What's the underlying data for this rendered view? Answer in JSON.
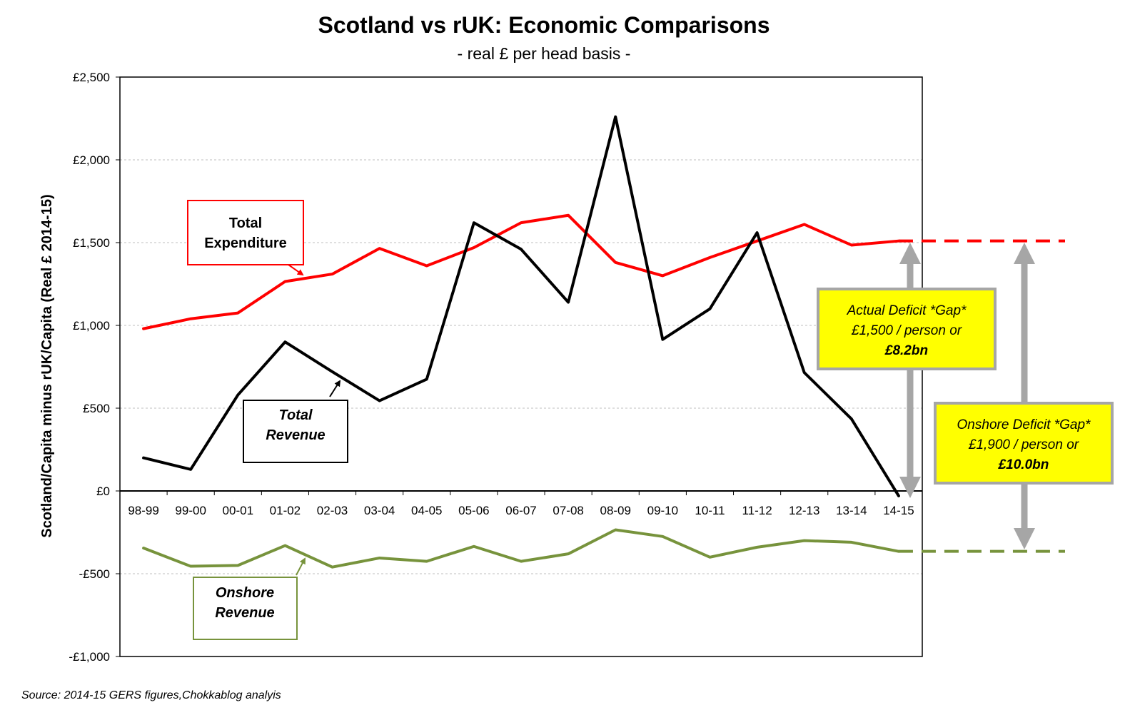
{
  "chart_data": {
    "type": "line",
    "title": "Scotland vs rUK: Economic Comparisons",
    "subtitle": "- real £ per head basis -",
    "ylabel": "Scotland/Capita minus rUK/Capita (Real £ 2014-15)",
    "xlabel": "",
    "ylim": [
      -1000,
      2500
    ],
    "yticks": [
      -1000,
      -500,
      0,
      500,
      1000,
      1500,
      2000,
      2500
    ],
    "ytick_labels": [
      "-£1,000",
      "-£500",
      "£0",
      "£500",
      "£1,000",
      "£1,500",
      "£2,000",
      "£2,500"
    ],
    "grid": "horizontal dotted",
    "categories": [
      "98-99",
      "99-00",
      "00-01",
      "01-02",
      "02-03",
      "03-04",
      "04-05",
      "05-06",
      "06-07",
      "07-08",
      "08-09",
      "09-10",
      "10-11",
      "11-12",
      "12-13",
      "13-14",
      "14-15"
    ],
    "series": [
      {
        "name": "Total Expenditure",
        "color": "#ff0000",
        "values": [
          980,
          1040,
          1075,
          1265,
          1310,
          1465,
          1360,
          1470,
          1620,
          1665,
          1380,
          1300,
          1410,
          1510,
          1610,
          1485,
          1510
        ]
      },
      {
        "name": "Total Revenue",
        "color": "#000000",
        "values": [
          200,
          130,
          580,
          900,
          720,
          545,
          675,
          1620,
          1460,
          1140,
          2260,
          915,
          1100,
          1560,
          715,
          435,
          -30
        ]
      },
      {
        "name": "Onshore Revenue",
        "color": "#77933c",
        "values": [
          -345,
          -455,
          -450,
          -330,
          -460,
          -405,
          -425,
          -335,
          -425,
          -380,
          -235,
          -275,
          -400,
          -340,
          -300,
          -310,
          -365
        ]
      }
    ],
    "extensions": [
      {
        "series": "Total Expenditure",
        "value": 1510,
        "style": "dashed",
        "color": "#ff0000"
      },
      {
        "series": "Onshore Revenue",
        "value": -365,
        "style": "dashed",
        "color": "#77933c"
      }
    ],
    "annotations": {
      "expenditure_label": {
        "line1": "Total",
        "line2": "Expenditure",
        "color": "#ff0000"
      },
      "revenue_label": {
        "line1": "Total",
        "line2": "Revenue",
        "color": "#000000"
      },
      "onshore_label": {
        "line1": "Onshore",
        "line2": "Revenue",
        "color": "#77933c"
      },
      "actual_gap": {
        "line1": "Actual Deficit *Gap*",
        "line2": "£1,500 / person or",
        "line3": "£8.2bn",
        "fill": "#ffff00"
      },
      "onshore_gap": {
        "line1": "Onshore Deficit *Gap*",
        "line2": "£1,900 / person or",
        "line3": "£10.0bn",
        "fill": "#ffff00"
      }
    },
    "source": "Source: 2014-15 GERS figures,Chokkablog analyis"
  }
}
